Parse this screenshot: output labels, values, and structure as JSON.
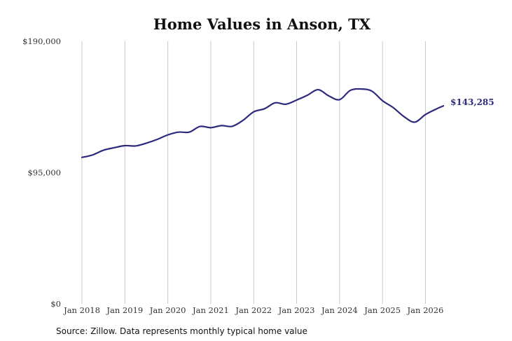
{
  "chart_data": {
    "type": "line",
    "title": "Home Values in Anson, TX",
    "xlabel": "",
    "ylabel": "",
    "ylim": [
      0,
      190000
    ],
    "xlim": [
      "2018-01",
      "2026-06"
    ],
    "grid": "vertical",
    "y_ticks": [
      {
        "value": 0,
        "label": "$0"
      },
      {
        "value": 95000,
        "label": "$95,000"
      },
      {
        "value": 190000,
        "label": "$190,000"
      }
    ],
    "x_ticks": [
      {
        "value": "2018-01",
        "label": "Jan 2018"
      },
      {
        "value": "2019-01",
        "label": "Jan 2019"
      },
      {
        "value": "2020-01",
        "label": "Jan 2020"
      },
      {
        "value": "2021-01",
        "label": "Jan 2021"
      },
      {
        "value": "2022-01",
        "label": "Jan 2022"
      },
      {
        "value": "2023-01",
        "label": "Jan 2023"
      },
      {
        "value": "2024-01",
        "label": "Jan 2024"
      },
      {
        "value": "2025-01",
        "label": "Jan 2025"
      },
      {
        "value": "2026-01",
        "label": "Jan 2026"
      }
    ],
    "series": [
      {
        "color": "#2d2a7e",
        "end_label": "$143,285",
        "points": [
          {
            "x": "2018-01",
            "y": 106000
          },
          {
            "x": "2018-04",
            "y": 107800
          },
          {
            "x": "2018-07",
            "y": 111200
          },
          {
            "x": "2018-10",
            "y": 113000
          },
          {
            "x": "2019-01",
            "y": 114500
          },
          {
            "x": "2019-04",
            "y": 114300
          },
          {
            "x": "2019-07",
            "y": 116300
          },
          {
            "x": "2019-10",
            "y": 119000
          },
          {
            "x": "2020-01",
            "y": 122300
          },
          {
            "x": "2020-04",
            "y": 124300
          },
          {
            "x": "2020-07",
            "y": 124300
          },
          {
            "x": "2020-10",
            "y": 128400
          },
          {
            "x": "2021-01",
            "y": 127500
          },
          {
            "x": "2021-04",
            "y": 129000
          },
          {
            "x": "2021-07",
            "y": 128500
          },
          {
            "x": "2021-10",
            "y": 132800
          },
          {
            "x": "2022-01",
            "y": 139000
          },
          {
            "x": "2022-04",
            "y": 141200
          },
          {
            "x": "2022-07",
            "y": 145500
          },
          {
            "x": "2022-10",
            "y": 144500
          },
          {
            "x": "2023-01",
            "y": 147500
          },
          {
            "x": "2023-04",
            "y": 151000
          },
          {
            "x": "2023-07",
            "y": 155000
          },
          {
            "x": "2023-10",
            "y": 150500
          },
          {
            "x": "2024-01",
            "y": 147800
          },
          {
            "x": "2024-04",
            "y": 154500
          },
          {
            "x": "2024-07",
            "y": 155500
          },
          {
            "x": "2024-10",
            "y": 154000
          },
          {
            "x": "2025-01",
            "y": 147000
          },
          {
            "x": "2025-04",
            "y": 142000
          },
          {
            "x": "2025-07",
            "y": 135500
          },
          {
            "x": "2025-10",
            "y": 131500
          },
          {
            "x": "2026-01",
            "y": 137000
          },
          {
            "x": "2026-04",
            "y": 141000
          },
          {
            "x": "2026-06",
            "y": 143285
          }
        ]
      }
    ]
  },
  "footer": {
    "source": "Source: Zillow. Data represents monthly typical home value"
  }
}
